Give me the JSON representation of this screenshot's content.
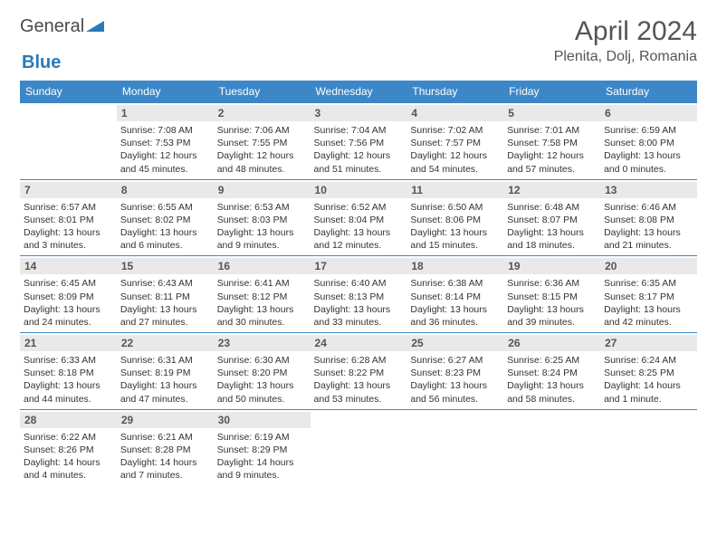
{
  "logo": {
    "word1": "General",
    "word2": "Blue"
  },
  "title": "April 2024",
  "location": "Plenita, Dolj, Romania",
  "colors": {
    "header_bg": "#3c87c7",
    "header_text": "#ffffff",
    "daynum_bg": "#e9e9e9",
    "border": "#3c87c7",
    "text": "#333333",
    "title_color": "#555555"
  },
  "weekdays": [
    "Sunday",
    "Monday",
    "Tuesday",
    "Wednesday",
    "Thursday",
    "Friday",
    "Saturday"
  ],
  "weeks": [
    [
      {
        "n": "",
        "sr": "",
        "ss": "",
        "dl": ""
      },
      {
        "n": "1",
        "sr": "Sunrise: 7:08 AM",
        "ss": "Sunset: 7:53 PM",
        "dl": "Daylight: 12 hours and 45 minutes."
      },
      {
        "n": "2",
        "sr": "Sunrise: 7:06 AM",
        "ss": "Sunset: 7:55 PM",
        "dl": "Daylight: 12 hours and 48 minutes."
      },
      {
        "n": "3",
        "sr": "Sunrise: 7:04 AM",
        "ss": "Sunset: 7:56 PM",
        "dl": "Daylight: 12 hours and 51 minutes."
      },
      {
        "n": "4",
        "sr": "Sunrise: 7:02 AM",
        "ss": "Sunset: 7:57 PM",
        "dl": "Daylight: 12 hours and 54 minutes."
      },
      {
        "n": "5",
        "sr": "Sunrise: 7:01 AM",
        "ss": "Sunset: 7:58 PM",
        "dl": "Daylight: 12 hours and 57 minutes."
      },
      {
        "n": "6",
        "sr": "Sunrise: 6:59 AM",
        "ss": "Sunset: 8:00 PM",
        "dl": "Daylight: 13 hours and 0 minutes."
      }
    ],
    [
      {
        "n": "7",
        "sr": "Sunrise: 6:57 AM",
        "ss": "Sunset: 8:01 PM",
        "dl": "Daylight: 13 hours and 3 minutes."
      },
      {
        "n": "8",
        "sr": "Sunrise: 6:55 AM",
        "ss": "Sunset: 8:02 PM",
        "dl": "Daylight: 13 hours and 6 minutes."
      },
      {
        "n": "9",
        "sr": "Sunrise: 6:53 AM",
        "ss": "Sunset: 8:03 PM",
        "dl": "Daylight: 13 hours and 9 minutes."
      },
      {
        "n": "10",
        "sr": "Sunrise: 6:52 AM",
        "ss": "Sunset: 8:04 PM",
        "dl": "Daylight: 13 hours and 12 minutes."
      },
      {
        "n": "11",
        "sr": "Sunrise: 6:50 AM",
        "ss": "Sunset: 8:06 PM",
        "dl": "Daylight: 13 hours and 15 minutes."
      },
      {
        "n": "12",
        "sr": "Sunrise: 6:48 AM",
        "ss": "Sunset: 8:07 PM",
        "dl": "Daylight: 13 hours and 18 minutes."
      },
      {
        "n": "13",
        "sr": "Sunrise: 6:46 AM",
        "ss": "Sunset: 8:08 PM",
        "dl": "Daylight: 13 hours and 21 minutes."
      }
    ],
    [
      {
        "n": "14",
        "sr": "Sunrise: 6:45 AM",
        "ss": "Sunset: 8:09 PM",
        "dl": "Daylight: 13 hours and 24 minutes."
      },
      {
        "n": "15",
        "sr": "Sunrise: 6:43 AM",
        "ss": "Sunset: 8:11 PM",
        "dl": "Daylight: 13 hours and 27 minutes."
      },
      {
        "n": "16",
        "sr": "Sunrise: 6:41 AM",
        "ss": "Sunset: 8:12 PM",
        "dl": "Daylight: 13 hours and 30 minutes."
      },
      {
        "n": "17",
        "sr": "Sunrise: 6:40 AM",
        "ss": "Sunset: 8:13 PM",
        "dl": "Daylight: 13 hours and 33 minutes."
      },
      {
        "n": "18",
        "sr": "Sunrise: 6:38 AM",
        "ss": "Sunset: 8:14 PM",
        "dl": "Daylight: 13 hours and 36 minutes."
      },
      {
        "n": "19",
        "sr": "Sunrise: 6:36 AM",
        "ss": "Sunset: 8:15 PM",
        "dl": "Daylight: 13 hours and 39 minutes."
      },
      {
        "n": "20",
        "sr": "Sunrise: 6:35 AM",
        "ss": "Sunset: 8:17 PM",
        "dl": "Daylight: 13 hours and 42 minutes."
      }
    ],
    [
      {
        "n": "21",
        "sr": "Sunrise: 6:33 AM",
        "ss": "Sunset: 8:18 PM",
        "dl": "Daylight: 13 hours and 44 minutes."
      },
      {
        "n": "22",
        "sr": "Sunrise: 6:31 AM",
        "ss": "Sunset: 8:19 PM",
        "dl": "Daylight: 13 hours and 47 minutes."
      },
      {
        "n": "23",
        "sr": "Sunrise: 6:30 AM",
        "ss": "Sunset: 8:20 PM",
        "dl": "Daylight: 13 hours and 50 minutes."
      },
      {
        "n": "24",
        "sr": "Sunrise: 6:28 AM",
        "ss": "Sunset: 8:22 PM",
        "dl": "Daylight: 13 hours and 53 minutes."
      },
      {
        "n": "25",
        "sr": "Sunrise: 6:27 AM",
        "ss": "Sunset: 8:23 PM",
        "dl": "Daylight: 13 hours and 56 minutes."
      },
      {
        "n": "26",
        "sr": "Sunrise: 6:25 AM",
        "ss": "Sunset: 8:24 PM",
        "dl": "Daylight: 13 hours and 58 minutes."
      },
      {
        "n": "27",
        "sr": "Sunrise: 6:24 AM",
        "ss": "Sunset: 8:25 PM",
        "dl": "Daylight: 14 hours and 1 minute."
      }
    ],
    [
      {
        "n": "28",
        "sr": "Sunrise: 6:22 AM",
        "ss": "Sunset: 8:26 PM",
        "dl": "Daylight: 14 hours and 4 minutes."
      },
      {
        "n": "29",
        "sr": "Sunrise: 6:21 AM",
        "ss": "Sunset: 8:28 PM",
        "dl": "Daylight: 14 hours and 7 minutes."
      },
      {
        "n": "30",
        "sr": "Sunrise: 6:19 AM",
        "ss": "Sunset: 8:29 PM",
        "dl": "Daylight: 14 hours and 9 minutes."
      },
      {
        "n": "",
        "sr": "",
        "ss": "",
        "dl": ""
      },
      {
        "n": "",
        "sr": "",
        "ss": "",
        "dl": ""
      },
      {
        "n": "",
        "sr": "",
        "ss": "",
        "dl": ""
      },
      {
        "n": "",
        "sr": "",
        "ss": "",
        "dl": ""
      }
    ]
  ]
}
